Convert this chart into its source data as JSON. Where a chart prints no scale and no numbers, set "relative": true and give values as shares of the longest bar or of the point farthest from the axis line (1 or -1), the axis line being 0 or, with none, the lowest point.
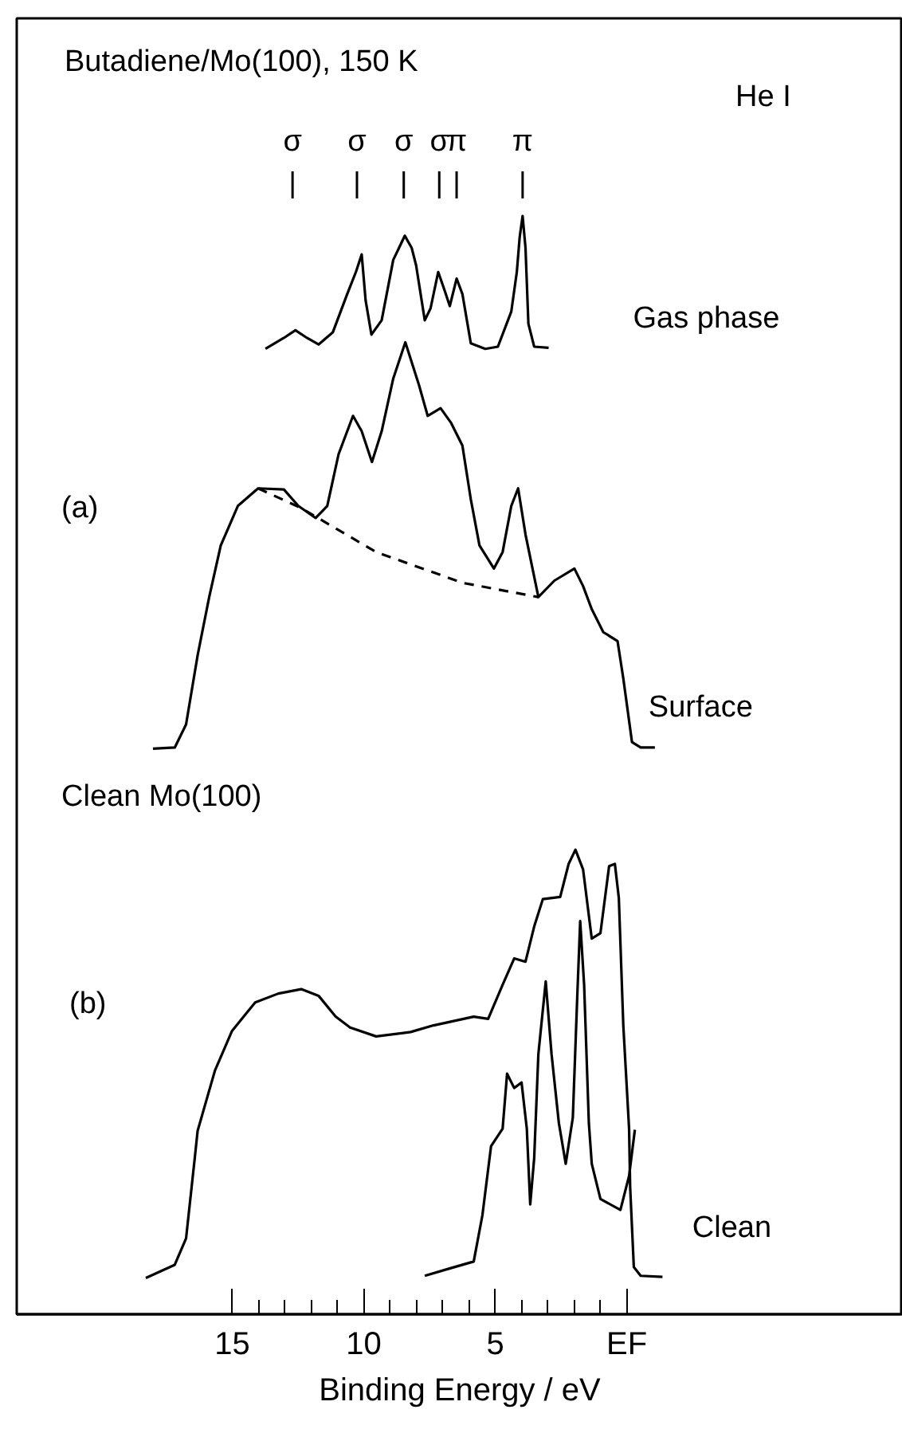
{
  "chart_data": {
    "type": "line",
    "title": "Butadiene/Mo(100), 150 K",
    "xlabel": "Binding Energy / eV",
    "relative": true,
    "xlim": [
      23.2,
      -10.5
    ],
    "xticks": [
      15,
      {
        "value": 14,
        "label": null
      },
      {
        "value": 13,
        "label": null
      },
      {
        "value": 12,
        "label": null
      },
      {
        "value": 11,
        "label": null
      },
      10,
      {
        "value": 9,
        "label": null
      },
      {
        "value": 8,
        "label": null
      },
      {
        "value": 7,
        "label": null
      },
      {
        "value": 6,
        "label": null
      },
      5,
      {
        "value": 4,
        "label": null
      },
      {
        "value": 3,
        "label": null
      },
      {
        "value": 2,
        "label": null
      },
      {
        "value": 1,
        "label": null
      },
      {
        "value": 0,
        "label": "EF"
      }
    ],
    "annotations": [
      "He I",
      "(a)",
      "Clean Mo(100)",
      "(b)",
      {
        "text": "σ",
        "x": 12.71
      },
      {
        "text": "σ",
        "x": 10.26
      },
      {
        "text": "σ",
        "x": 8.48
      },
      {
        "text": "σ",
        "x": 7.13
      },
      {
        "text": "π",
        "x": 6.47
      },
      {
        "text": "π",
        "x": 3.96
      }
    ],
    "series": [
      {
        "name": "Gas phase",
        "color": "#000000",
        "x": [
          13.74,
          13.04,
          12.6,
          12.16,
          11.72,
          11.18,
          10.63,
          10.3,
          10.08,
          9.93,
          9.71,
          9.32,
          8.88,
          8.66,
          8.44,
          8.18,
          8.01,
          7.68,
          7.46,
          7.17,
          6.91,
          6.73,
          6.47,
          6.25,
          5.93,
          5.38,
          4.9,
          4.39,
          4.18,
          4.07,
          3.96,
          3.85,
          3.74,
          3.52,
          2.97
        ],
        "values": [
          0.879,
          0.889,
          0.896,
          0.889,
          0.883,
          0.894,
          0.929,
          0.949,
          0.965,
          0.923,
          0.892,
          0.905,
          0.96,
          0.971,
          0.982,
          0.971,
          0.955,
          0.905,
          0.916,
          0.949,
          0.931,
          0.918,
          0.943,
          0.929,
          0.884,
          0.879,
          0.881,
          0.913,
          0.949,
          0.981,
          1,
          0.971,
          0.902,
          0.881,
          0.88
        ]
      },
      {
        "name": "Surface",
        "color": "#000000",
        "x": [
          18.02,
          17.19,
          16.76,
          16.32,
          15.88,
          15.44,
          14.79,
          14.02,
          13.04,
          12.49,
          11.83,
          11.39,
          10.96,
          10.41,
          10.08,
          9.69,
          9.32,
          8.88,
          8.42,
          7.9,
          7.57,
          7.08,
          6.69,
          6.25,
          5.93,
          5.6,
          5.05,
          4.72,
          4.39,
          4.13,
          3.85,
          3.36,
          2.75,
          1.99,
          1.66,
          1.33,
          0.89,
          0.35,
          0.13,
          -0.2,
          -0.53,
          -1.07
        ],
        "values": [
          0.515,
          0.516,
          0.537,
          0.6,
          0.653,
          0.7,
          0.736,
          0.752,
          0.751,
          0.736,
          0.725,
          0.736,
          0.783,
          0.818,
          0.804,
          0.776,
          0.804,
          0.852,
          0.885,
          0.846,
          0.818,
          0.825,
          0.812,
          0.791,
          0.742,
          0.7,
          0.679,
          0.694,
          0.736,
          0.752,
          0.71,
          0.653,
          0.668,
          0.679,
          0.663,
          0.642,
          0.621,
          0.613,
          0.579,
          0.521,
          0.516,
          0.516
        ]
      },
      {
        "color": "#000000",
        "line_style": "dashed",
        "x": [
          14.02,
          12.38,
          9.53,
          6.25,
          3.36
        ],
        "values": [
          0.752,
          0.734,
          0.694,
          0.666,
          0.653
        ]
      },
      {
        "color": "#000000",
        "x": [
          18.29,
          17.19,
          16.76,
          16.43,
          16.32,
          15.66,
          15.01,
          14.13,
          13.25,
          12.38,
          11.72,
          11.07,
          10.52,
          9.53,
          8.22,
          7.35,
          5.82,
          5.27,
          4.72,
          4.28,
          3.85,
          3.52,
          3.19,
          2.53,
          2.21,
          1.95,
          1.66,
          1.33,
          1.0,
          0.67,
          0.45,
          0.3,
          0.13,
          -0.09,
          -0.13,
          -0.27,
          -0.53,
          -1.36
        ],
        "values": [
          0.033,
          0.045,
          0.069,
          0.142,
          0.167,
          0.222,
          0.258,
          0.284,
          0.292,
          0.296,
          0.29,
          0.271,
          0.261,
          0.253,
          0.257,
          0.263,
          0.271,
          0.269,
          0.3,
          0.324,
          0.321,
          0.353,
          0.378,
          0.38,
          0.41,
          0.423,
          0.405,
          0.342,
          0.347,
          0.408,
          0.41,
          0.379,
          0.263,
          0.169,
          0.116,
          0.043,
          0.035,
          0.034
        ]
      },
      {
        "name": "Clean",
        "color": "#000000",
        "x": [
          7.68,
          6.69,
          5.82,
          5.49,
          5.16,
          4.72,
          4.55,
          4.28,
          4.0,
          3.8,
          3.67,
          3.52,
          3.36,
          3.08,
          2.86,
          2.58,
          2.32,
          2.05,
          1.88,
          1.77,
          1.62,
          1.44,
          1.33,
          1.0,
          0.24,
          -0.09,
          -0.31
        ],
        "values": [
          0.035,
          0.042,
          0.048,
          0.09,
          0.153,
          0.169,
          0.219,
          0.206,
          0.211,
          0.169,
          0.1,
          0.142,
          0.237,
          0.303,
          0.237,
          0.174,
          0.137,
          0.179,
          0.29,
          0.358,
          0.3,
          0.174,
          0.137,
          0.105,
          0.095,
          0.126,
          0.168
        ]
      }
    ]
  }
}
